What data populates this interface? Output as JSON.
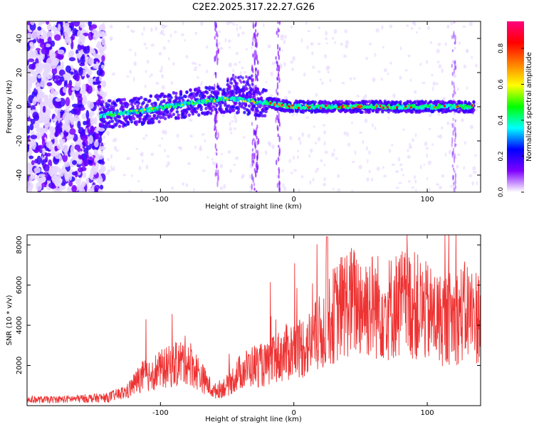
{
  "title": "C2E2.2025.317.22.27.G26",
  "chart_data": [
    {
      "type": "heatmap",
      "title": "C2E2.2025.317.22.27.G26",
      "xlabel": "Height of straight line (km)",
      "ylabel": "Frequency (Hz)",
      "xlim": [
        -200,
        140
      ],
      "ylim": [
        -50,
        50
      ],
      "xticks": [
        -100,
        0,
        100
      ],
      "yticks": [
        -40,
        -20,
        0,
        20,
        40
      ],
      "colorbar": {
        "label": "Normalized spectral amplitude",
        "range": [
          0.0,
          0.95
        ],
        "ticks": [
          0.0,
          0.2,
          0.4,
          0.6,
          0.8
        ],
        "colormap": [
          "#ffffff",
          "#e0ccff",
          "#8000ff",
          "#0000ff",
          "#00ffff",
          "#00ff00",
          "#ffff00",
          "#ff8000",
          "#ff0000",
          "#ff0080"
        ]
      },
      "ridge": {
        "description_points": [
          {
            "x": -145,
            "y": -5
          },
          {
            "x": -110,
            "y": -2
          },
          {
            "x": -80,
            "y": 2
          },
          {
            "x": -50,
            "y": 5
          },
          {
            "x": -30,
            "y": 3
          },
          {
            "x": -10,
            "y": 1
          },
          {
            "x": 0,
            "y": 0
          },
          {
            "x": 135,
            "y": 0
          }
        ]
      }
    },
    {
      "type": "line",
      "xlabel": "Height of straight line (km)",
      "ylabel": "SNR (10 * v/v)",
      "xlim": [
        -200,
        140
      ],
      "ylim": [
        0,
        8500
      ],
      "xticks": [
        -100,
        0,
        100
      ],
      "yticks": [
        2000,
        4000,
        6000,
        8000
      ],
      "series": [
        {
          "name": "SNR",
          "color": "#ee3333",
          "envelope_x": [
            -200,
            -180,
            -160,
            -140,
            -125,
            -115,
            -100,
            -90,
            -80,
            -70,
            -60,
            -50,
            -40,
            -30,
            -20,
            -10,
            0,
            10,
            20,
            30,
            40,
            50,
            60,
            70,
            80,
            90,
            100,
            110,
            120,
            130,
            135
          ],
          "envelope_y": [
            300,
            300,
            350,
            400,
            700,
            1400,
            1800,
            2000,
            2300,
            1500,
            700,
            1000,
            1700,
            2000,
            2000,
            2500,
            2800,
            3000,
            3600,
            4500,
            5200,
            5100,
            5000,
            4800,
            5100,
            5000,
            4600,
            4300,
            4400,
            4700,
            4500
          ]
        }
      ]
    }
  ]
}
